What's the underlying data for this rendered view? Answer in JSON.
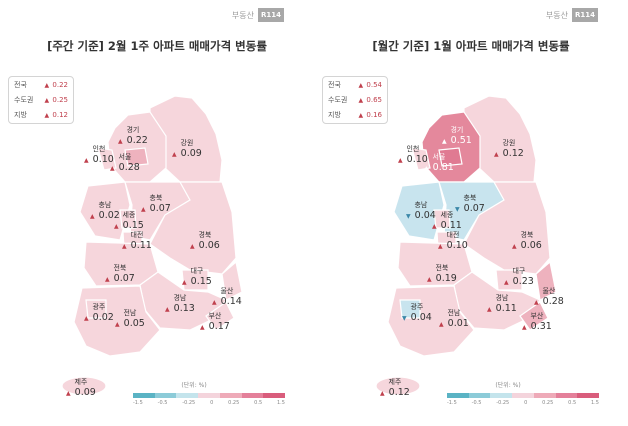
{
  "brand": {
    "text": "부동산",
    "box": "R114"
  },
  "legend": {
    "unit": "(단위: %)",
    "ticks": [
      "-1.5",
      "-0.5",
      "-0.25",
      "0",
      "0.25",
      "0.5",
      "1.5"
    ],
    "colors": [
      "#5ab3c4",
      "#8ccbd8",
      "#c4e4ec",
      "#f4d4dc",
      "#eeaab8",
      "#e4809a",
      "#d95d7c"
    ]
  },
  "weekly": {
    "title": "[주간 기준] 2월 1주 아파트 매매가격 변동률",
    "summary": [
      {
        "label": "전국",
        "value": "0.22",
        "dir": "up"
      },
      {
        "label": "수도권",
        "value": "0.25",
        "dir": "up"
      },
      {
        "label": "지방",
        "value": "0.12",
        "dir": "up"
      }
    ],
    "regions": {
      "incheon": {
        "name": "인천",
        "value": "0.10",
        "dir": "up",
        "color": "#f6d6dc"
      },
      "gyeonggi": {
        "name": "경기",
        "value": "0.22",
        "dir": "up",
        "color": "#f6d6dc"
      },
      "seoul": {
        "name": "서울",
        "value": "0.28",
        "dir": "up",
        "color": "#eeb2be"
      },
      "gangwon": {
        "name": "강원",
        "value": "0.09",
        "dir": "up",
        "color": "#f6d6dc"
      },
      "chungnam": {
        "name": "충남",
        "value": "0.02",
        "dir": "up",
        "color": "#f6d6dc"
      },
      "chungbuk": {
        "name": "충북",
        "value": "0.07",
        "dir": "up",
        "color": "#f6d6dc"
      },
      "sejong": {
        "name": "세종",
        "value": "0.15",
        "dir": "up",
        "color": "#f6d6dc"
      },
      "daejeon": {
        "name": "대전",
        "value": "0.11",
        "dir": "up",
        "color": "#f6d6dc"
      },
      "gyeongbuk": {
        "name": "경북",
        "value": "0.06",
        "dir": "up",
        "color": "#f6d6dc"
      },
      "jeonbuk": {
        "name": "전북",
        "value": "0.07",
        "dir": "up",
        "color": "#f6d6dc"
      },
      "daegu": {
        "name": "대구",
        "value": "0.15",
        "dir": "up",
        "color": "#f6d6dc"
      },
      "ulsan": {
        "name": "울산",
        "value": "0.14",
        "dir": "up",
        "color": "#f6d6dc"
      },
      "gyeongnam": {
        "name": "경남",
        "value": "0.13",
        "dir": "up",
        "color": "#f6d6dc"
      },
      "gwangju": {
        "name": "광주",
        "value": "0.02",
        "dir": "up",
        "color": "#f6d6dc"
      },
      "jeonnam": {
        "name": "전남",
        "value": "0.05",
        "dir": "up",
        "color": "#f6d6dc"
      },
      "busan": {
        "name": "부산",
        "value": "0.17",
        "dir": "up",
        "color": "#f6d6dc"
      },
      "jeju": {
        "name": "제주",
        "value": "0.09",
        "dir": "up",
        "color": "#f6d6dc"
      }
    }
  },
  "monthly": {
    "title": "[월간 기준] 1월 아파트 매매가격 변동률",
    "summary": [
      {
        "label": "전국",
        "value": "0.54",
        "dir": "up"
      },
      {
        "label": "수도권",
        "value": "0.65",
        "dir": "up"
      },
      {
        "label": "지방",
        "value": "0.16",
        "dir": "up"
      }
    ],
    "regions": {
      "incheon": {
        "name": "인천",
        "value": "0.10",
        "dir": "up",
        "color": "#f6d6dc"
      },
      "gyeonggi": {
        "name": "경기",
        "value": "0.51",
        "dir": "up",
        "color": "#e4889c"
      },
      "seoul": {
        "name": "서울",
        "value": "0.81",
        "dir": "up",
        "color": "#e4889c"
      },
      "gangwon": {
        "name": "강원",
        "value": "0.12",
        "dir": "up",
        "color": "#f6d6dc"
      },
      "chungnam": {
        "name": "충남",
        "value": "0.04",
        "dir": "down",
        "color": "#c8e4ee"
      },
      "chungbuk": {
        "name": "충북",
        "value": "0.07",
        "dir": "down",
        "color": "#c8e4ee"
      },
      "sejong": {
        "name": "세종",
        "value": "0.11",
        "dir": "up",
        "color": "#f6d6dc"
      },
      "daejeon": {
        "name": "대전",
        "value": "0.10",
        "dir": "up",
        "color": "#f6d6dc"
      },
      "gyeongbuk": {
        "name": "경북",
        "value": "0.06",
        "dir": "up",
        "color": "#f6d6dc"
      },
      "jeonbuk": {
        "name": "전북",
        "value": "0.19",
        "dir": "up",
        "color": "#f6d6dc"
      },
      "daegu": {
        "name": "대구",
        "value": "0.23",
        "dir": "up",
        "color": "#f6d6dc"
      },
      "ulsan": {
        "name": "울산",
        "value": "0.28",
        "dir": "up",
        "color": "#eeb2be"
      },
      "gyeongnam": {
        "name": "경남",
        "value": "0.11",
        "dir": "up",
        "color": "#f6d6dc"
      },
      "gwangju": {
        "name": "광주",
        "value": "0.04",
        "dir": "down",
        "color": "#c8e4ee"
      },
      "jeonnam": {
        "name": "전남",
        "value": "0.01",
        "dir": "up",
        "color": "#f6d6dc"
      },
      "busan": {
        "name": "부산",
        "value": "0.31",
        "dir": "up",
        "color": "#eeb2be"
      },
      "jeju": {
        "name": "제주",
        "value": "0.12",
        "dir": "up",
        "color": "#f6d6dc"
      }
    }
  }
}
